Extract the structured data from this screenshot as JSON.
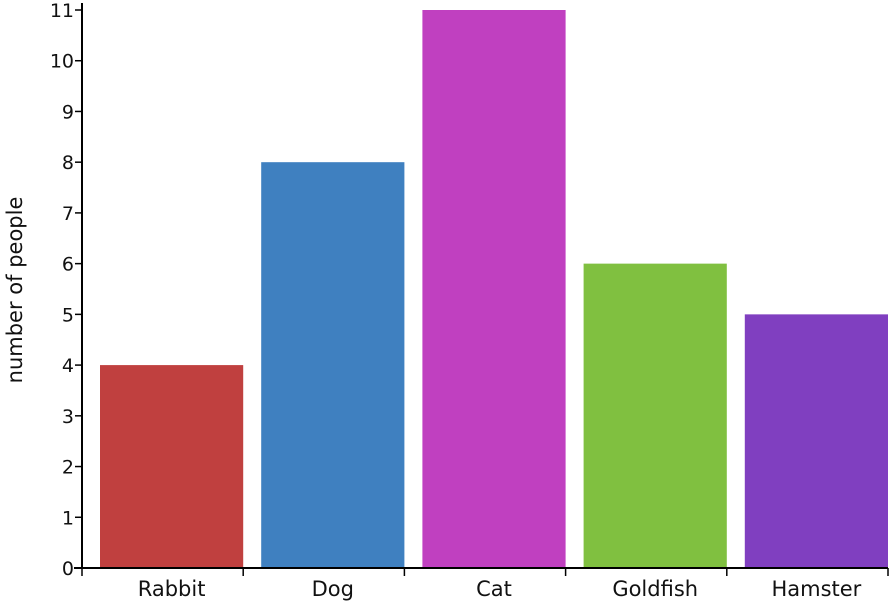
{
  "chart_data": {
    "type": "bar",
    "categories": [
      "Rabbit",
      "Dog",
      "Cat",
      "Goldfish",
      "Hamster"
    ],
    "values": [
      4,
      8,
      11,
      6,
      5
    ],
    "colors": [
      "#c0403f",
      "#3f80c0",
      "#c040c0",
      "#80c040",
      "#803fc0"
    ],
    "title": "",
    "xlabel": "",
    "ylabel": "number of people",
    "ylim": [
      0,
      11
    ],
    "yticks": [
      "0",
      "1",
      "2",
      "3",
      "4",
      "5",
      "6",
      "7",
      "8",
      "9",
      "10",
      "11"
    ],
    "grid": false,
    "legend": "none"
  }
}
